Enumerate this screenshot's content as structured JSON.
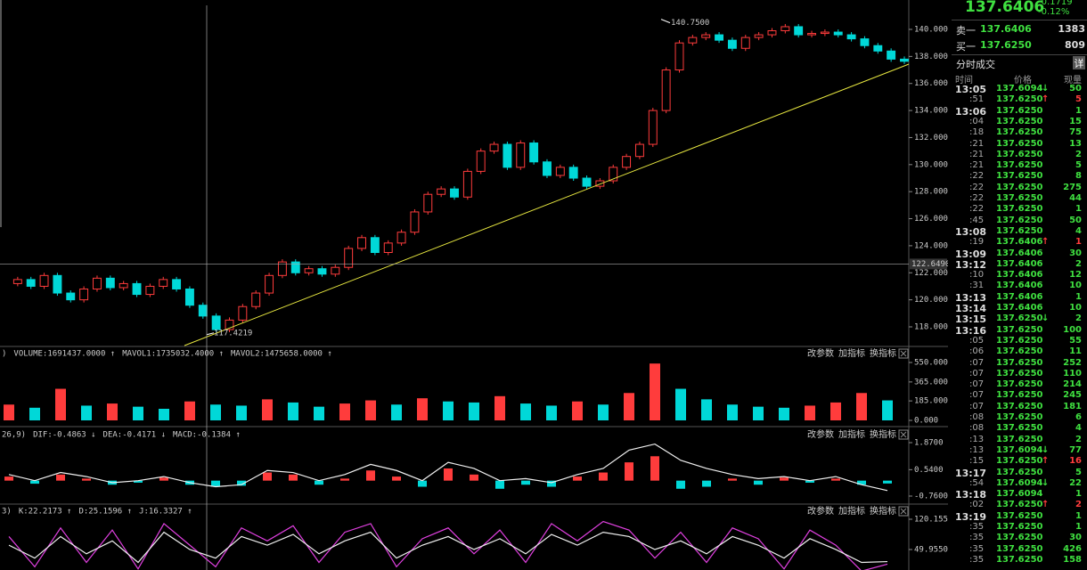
{
  "main": {
    "ylim": [
      117,
      141
    ],
    "yticks": [
      {
        "value": 118,
        "label": "118.0000"
      },
      {
        "value": 120,
        "label": "120.0000"
      },
      {
        "value": 122,
        "label": "122.0000"
      },
      {
        "value": 124,
        "label": "124.0000"
      },
      {
        "value": 126,
        "label": "126.0000"
      },
      {
        "value": 128,
        "label": "128.0000"
      },
      {
        "value": 130,
        "label": "130.0000"
      },
      {
        "value": 132,
        "label": "132.0000"
      },
      {
        "value": 134,
        "label": "134.0000"
      },
      {
        "value": 136,
        "label": "136.0000"
      },
      {
        "value": 138,
        "label": "138.0000"
      },
      {
        "value": 140,
        "label": "140.0000"
      }
    ],
    "closes": [
      121.2,
      121.5,
      121.0,
      121.8,
      120.5,
      120.0,
      120.8,
      121.6,
      120.9,
      121.2,
      120.4,
      121.0,
      121.5,
      120.8,
      119.6,
      118.8,
      117.8,
      118.5,
      119.5,
      120.5,
      121.8,
      122.8,
      122.0,
      122.3,
      121.9,
      122.4,
      123.8,
      124.6,
      123.5,
      124.2,
      125.0,
      126.5,
      127.8,
      128.2,
      127.6,
      129.5,
      131.0,
      131.5,
      129.8,
      131.6,
      130.2,
      129.2,
      129.8,
      129.0,
      128.4,
      128.8,
      129.8,
      130.6,
      131.5,
      134.0,
      137.0,
      139.0,
      139.4,
      139.6,
      139.2,
      138.6,
      139.4,
      139.6,
      139.9,
      140.2,
      139.6,
      139.7,
      139.8,
      139.6,
      139.3,
      138.8,
      138.4,
      137.8,
      137.64
    ],
    "high": {
      "value": 140.75,
      "label": "140.7500"
    },
    "low": {
      "value": 117.4219,
      "label": "117.4219"
    },
    "crosshair": {
      "value": 122.649,
      "label": "122.6490"
    }
  },
  "panel_buttons": [
    "改参数",
    "加指标",
    "换指标"
  ],
  "volume": {
    "header": [
      {
        "text": ")",
        "color": "#ddd"
      },
      {
        "text": "VOLUME:1691437.0000 ↑",
        "color": "#ddd"
      },
      {
        "text": "MAVOL1:1735032.4000 ↑",
        "color": "#ffff40"
      },
      {
        "text": "MAVOL2:1475658.0000 ↑",
        "color": "#ff40ff"
      }
    ],
    "ylim": [
      0,
      550
    ],
    "yticks": [
      {
        "value": 0,
        "label": "0.000"
      },
      {
        "value": 185,
        "label": "185.000"
      },
      {
        "value": 365,
        "label": "365.000"
      },
      {
        "value": 550,
        "label": "550.000"
      }
    ],
    "values": [
      150,
      120,
      300,
      140,
      160,
      130,
      110,
      180,
      150,
      140,
      200,
      170,
      130,
      160,
      190,
      150,
      210,
      180,
      170,
      230,
      160,
      140,
      180,
      150,
      260,
      540,
      300,
      200,
      150,
      130,
      120,
      140,
      170,
      260,
      190
    ]
  },
  "macd": {
    "header": [
      {
        "text": "26,9)",
        "color": "#ddd"
      },
      {
        "text": "DIF:-0.4863 ↓",
        "color": "#ddd"
      },
      {
        "text": "DEA:-0.4171 ↓",
        "color": "#ffff40"
      },
      {
        "text": "MACD:-0.1384 ↑",
        "color": "#ff40ff"
      }
    ],
    "ylim": [
      -0.76,
      1.87
    ],
    "yticks": [
      {
        "value": -0.76,
        "label": "-0.7600"
      },
      {
        "value": 0.54,
        "label": "0.5400"
      },
      {
        "value": 1.87,
        "label": "1.8700"
      }
    ],
    "hist": [
      0.2,
      -0.15,
      0.3,
      0.1,
      -0.2,
      -0.1,
      0.15,
      -0.2,
      -0.3,
      -0.25,
      0.4,
      0.3,
      -0.2,
      0.1,
      0.5,
      0.2,
      -0.3,
      0.6,
      0.3,
      -0.4,
      -0.2,
      -0.3,
      0.2,
      0.4,
      0.9,
      1.2,
      -0.4,
      -0.3,
      0.1,
      -0.2,
      0.15,
      -0.1,
      0.1,
      -0.2,
      -0.14
    ],
    "dif": [
      0.3,
      0.0,
      0.4,
      0.2,
      -0.1,
      0.0,
      0.2,
      -0.1,
      -0.3,
      -0.2,
      0.5,
      0.4,
      0.0,
      0.3,
      0.8,
      0.5,
      0.0,
      0.9,
      0.6,
      0.0,
      0.1,
      -0.1,
      0.3,
      0.6,
      1.5,
      1.8,
      1.0,
      0.6,
      0.3,
      0.1,
      0.2,
      0.0,
      0.2,
      -0.2,
      -0.49
    ]
  },
  "kdj": {
    "header": [
      {
        "text": "3)",
        "color": "#ddd"
      },
      {
        "text": "K:22.2173 ↑",
        "color": "#ddd"
      },
      {
        "text": "D:25.1596 ↑",
        "color": "#ffff40"
      },
      {
        "text": "J:16.3327 ↑",
        "color": "#ff40ff"
      }
    ],
    "ylim": [
      49.955,
      120.1556
    ],
    "yticks": [
      {
        "value": 49.955,
        "label": "49.9550"
      },
      {
        "value": 120.1556,
        "label": "120.1556"
      }
    ],
    "k": [
      60,
      30,
      80,
      40,
      70,
      20,
      90,
      50,
      30,
      80,
      60,
      85,
      40,
      70,
      90,
      30,
      60,
      80,
      50,
      75,
      40,
      85,
      60,
      90,
      80,
      50,
      70,
      40,
      80,
      60,
      30,
      75,
      50,
      20,
      22
    ],
    "j": [
      80,
      10,
      100,
      20,
      95,
      5,
      110,
      60,
      10,
      100,
      70,
      105,
      20,
      90,
      110,
      10,
      75,
      100,
      40,
      95,
      20,
      110,
      70,
      115,
      95,
      30,
      90,
      20,
      100,
      75,
      5,
      95,
      60,
      0,
      16
    ]
  },
  "quote": {
    "price": "137.6406",
    "change": "-0.1719",
    "pct": "-0.12%",
    "sell": {
      "label": "卖一",
      "price": "137.6406",
      "vol": "1383"
    },
    "buy": {
      "label": "买一",
      "price": "137.6250",
      "vol": "809"
    }
  },
  "trades": {
    "title": "分时成交",
    "detail": "详",
    "columns": [
      "时间",
      "价格",
      "现量"
    ],
    "rows": [
      {
        "time": "13:05",
        "price": "137.6094",
        "arrow": "↓",
        "volume": "50"
      },
      {
        "time": ":51",
        "price": "137.6250",
        "arrow": "↑",
        "volume": "5"
      },
      {
        "time": "13:06",
        "price": "137.6250",
        "volume": "1"
      },
      {
        "time": ":04",
        "price": "137.6250",
        "volume": "15"
      },
      {
        "time": ":18",
        "price": "137.6250",
        "volume": "75"
      },
      {
        "time": ":21",
        "price": "137.6250",
        "volume": "13"
      },
      {
        "time": ":21",
        "price": "137.6250",
        "volume": "2"
      },
      {
        "time": ":21",
        "price": "137.6250",
        "volume": "5"
      },
      {
        "time": ":22",
        "price": "137.6250",
        "volume": "8"
      },
      {
        "time": ":22",
        "price": "137.6250",
        "volume": "275"
      },
      {
        "time": ":22",
        "price": "137.6250",
        "volume": "44"
      },
      {
        "time": ":22",
        "price": "137.6250",
        "volume": "1"
      },
      {
        "time": ":45",
        "price": "137.6250",
        "volume": "50"
      },
      {
        "time": "13:08",
        "price": "137.6250",
        "volume": "4"
      },
      {
        "time": ":19",
        "price": "137.6406",
        "arrow": "↑",
        "volume": "1"
      },
      {
        "time": "13:09",
        "price": "137.6406",
        "volume": "30"
      },
      {
        "time": "13:12",
        "price": "137.6406",
        "volume": "2"
      },
      {
        "time": ":10",
        "price": "137.6406",
        "volume": "12"
      },
      {
        "time": ":31",
        "price": "137.6406",
        "volume": "10"
      },
      {
        "time": "13:13",
        "price": "137.6406",
        "volume": "1"
      },
      {
        "time": "13:14",
        "price": "137.6406",
        "volume": "10"
      },
      {
        "time": "13:15",
        "price": "137.6250",
        "arrow": "↓",
        "volume": "2"
      },
      {
        "time": "13:16",
        "price": "137.6250",
        "volume": "100"
      },
      {
        "time": ":05",
        "price": "137.6250",
        "volume": "55"
      },
      {
        "time": ":06",
        "price": "137.6250",
        "volume": "11"
      },
      {
        "time": ":07",
        "price": "137.6250",
        "volume": "252"
      },
      {
        "time": ":07",
        "price": "137.6250",
        "volume": "110"
      },
      {
        "time": ":07",
        "price": "137.6250",
        "volume": "214"
      },
      {
        "time": ":07",
        "price": "137.6250",
        "volume": "245"
      },
      {
        "time": ":07",
        "price": "137.6250",
        "volume": "181"
      },
      {
        "time": ":08",
        "price": "137.6250",
        "volume": "6"
      },
      {
        "time": ":08",
        "price": "137.6250",
        "volume": "4"
      },
      {
        "time": ":13",
        "price": "137.6250",
        "volume": "2"
      },
      {
        "time": ":13",
        "price": "137.6094",
        "arrow": "↓",
        "volume": "77"
      },
      {
        "time": ":15",
        "price": "137.6250",
        "arrow": "↑",
        "volume": "16"
      },
      {
        "time": "13:17",
        "price": "137.6250",
        "volume": "5"
      },
      {
        "time": ":54",
        "price": "137.6094",
        "arrow": "↓",
        "volume": "22"
      },
      {
        "time": "13:18",
        "price": "137.6094",
        "volume": "1"
      },
      {
        "time": ":02",
        "price": "137.6250",
        "arrow": "↑",
        "volume": "2"
      },
      {
        "time": "13:19",
        "price": "137.6250",
        "volume": "1"
      },
      {
        "time": ":35",
        "price": "137.6250",
        "volume": "1"
      },
      {
        "time": ":35",
        "price": "137.6250",
        "volume": "30"
      },
      {
        "time": ":35",
        "price": "137.6250",
        "volume": "426"
      },
      {
        "time": ":35",
        "price": "137.6250",
        "volume": "158"
      }
    ]
  }
}
